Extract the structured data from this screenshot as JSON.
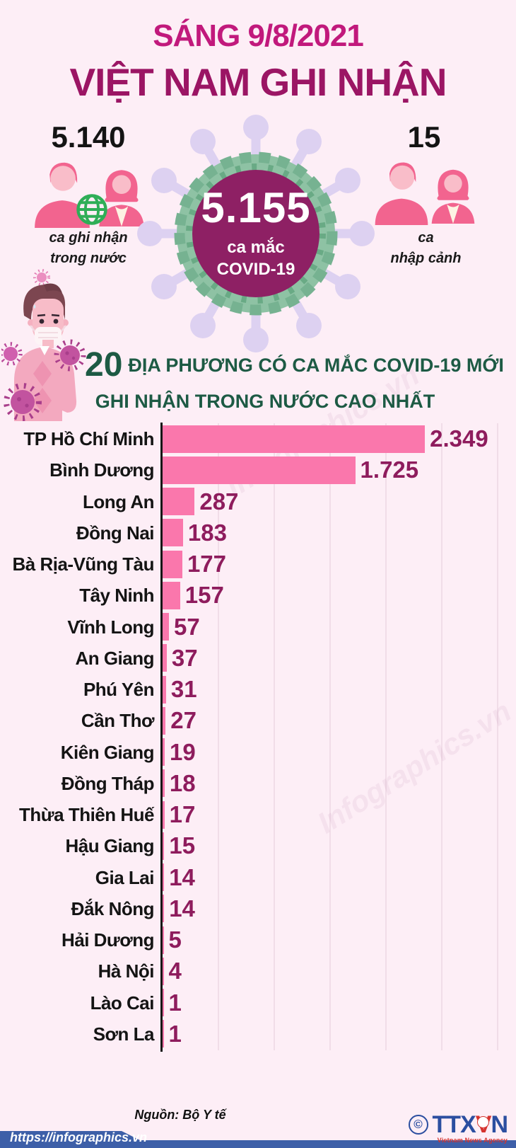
{
  "header": {
    "date_line": "SÁNG 9/8/2021",
    "title": "VIỆT NAM GHI NHẬN"
  },
  "stats": {
    "domestic": {
      "value": "5.140",
      "label_line1": "ca ghi nhận",
      "label_line2": "trong nước"
    },
    "total": {
      "value": "5.155",
      "label_line1": "ca mắc",
      "label_line2": "COVID-19"
    },
    "imported": {
      "value": "15",
      "label_line1": "ca",
      "label_line2": "nhập cảnh"
    }
  },
  "subtitle": {
    "big_number": "20",
    "line1_rest": "ĐỊA PHƯƠNG CÓ CA MẮC COVID-19 MỚI",
    "line2": "GHI NHẬN TRONG NƯỚC CAO NHẤT"
  },
  "chart_data": {
    "type": "bar",
    "orientation": "horizontal",
    "title": "20 địa phương có ca mắc COVID-19 mới ghi nhận trong nước cao nhất",
    "categories": [
      "TP Hồ Chí Minh",
      "Bình Dương",
      "Long An",
      "Đồng Nai",
      "Bà Rịa-Vũng Tàu",
      "Tây Ninh",
      "Vĩnh Long",
      "An Giang",
      "Phú Yên",
      "Cần Thơ",
      "Kiên Giang",
      "Đồng Tháp",
      "Thừa Thiên Huế",
      "Hậu Giang",
      "Gia Lai",
      "Đắk Nông",
      "Hải Dương",
      "Hà Nội",
      "Lào Cai",
      "Sơn La"
    ],
    "values": [
      2349,
      1725,
      287,
      183,
      177,
      157,
      57,
      37,
      31,
      27,
      19,
      18,
      17,
      15,
      14,
      14,
      5,
      4,
      1,
      1
    ],
    "value_labels": [
      "2.349",
      "1.725",
      "287",
      "183",
      "177",
      "157",
      "57",
      "37",
      "31",
      "27",
      "19",
      "18",
      "17",
      "15",
      "14",
      "14",
      "5",
      "4",
      "1",
      "1"
    ],
    "xlim": [
      0,
      3150
    ],
    "gridline_interval": 500,
    "grid": true,
    "legend": "none",
    "bar_color": "#fa77ac",
    "value_color": "#8e1c5d"
  },
  "footer": {
    "source": "Nguồn: Bộ Y tế",
    "url": "https://infographics.vn",
    "agency": {
      "copyright": "©",
      "name_part1": "TTX",
      "name_part2": "V",
      "name_part3": "N",
      "caption": "Vietnam News Agency"
    }
  },
  "icons": {
    "male-icon": "pink male person silhouette",
    "female-icon": "pink female person silhouette",
    "globe-icon": "green wireframe globe",
    "virus-icon": "coronavirus particle (green ring, lavender spikes)",
    "sick-person-icon": "masked sick man with virus particles",
    "ttxvn-emblem": "small white/red agency emblem"
  },
  "colors": {
    "background": "#fdeef6",
    "date_line": "#c1197c",
    "title": "#9b1564",
    "circle_fill": "#8e2064",
    "virus_green": "#7bb795",
    "virus_lavender": "#ddd1f1",
    "subtitle_green": "#1d5a44",
    "bar_pink": "#fa77ac",
    "value_magenta": "#8e1c5d",
    "banner_blue": "#3d5fa8",
    "agency_blue": "#2b4ea0",
    "agency_red": "#d5332e"
  },
  "watermark": "Infographics.vn"
}
